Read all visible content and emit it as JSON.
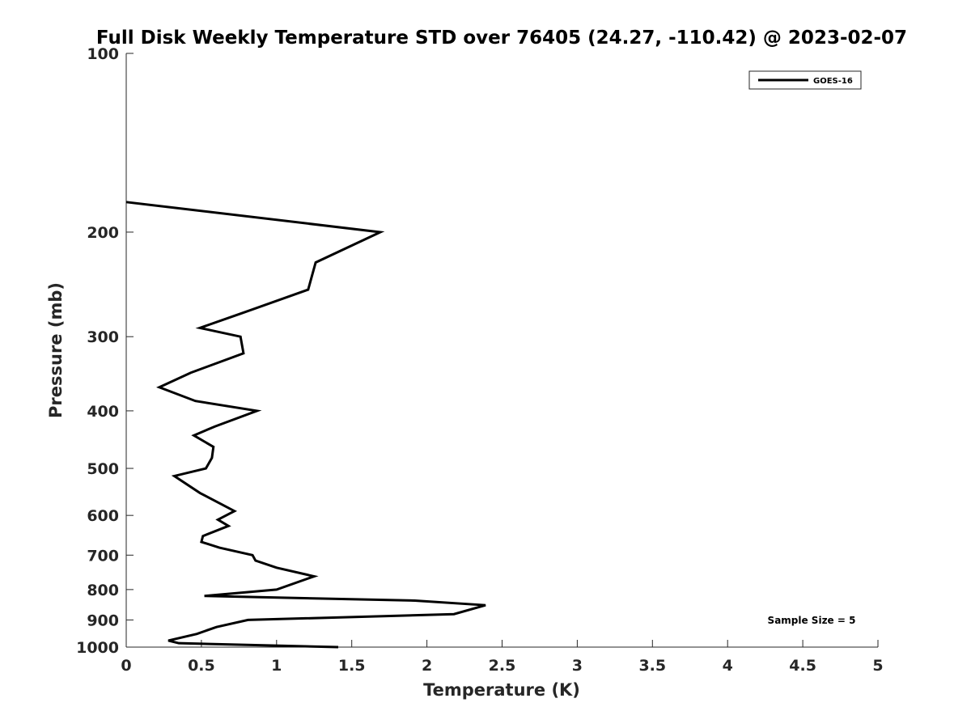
{
  "chart_data": {
    "type": "line",
    "title": "Full Disk Weekly Temperature STD over 76405 (24.27, -110.42) @ 2023-02-07",
    "xlabel": "Temperature (K)",
    "ylabel": "Pressure (mb)",
    "xlim": [
      0,
      5
    ],
    "ylim": [
      100,
      1000
    ],
    "y_scale": "log",
    "y_reversed": true,
    "x_ticks": [
      0,
      0.5,
      1,
      1.5,
      2,
      2.5,
      3,
      3.5,
      4,
      4.5,
      5
    ],
    "x_tick_labels": [
      "0",
      "0.5",
      "1",
      "1.5",
      "2",
      "2.5",
      "3",
      "3.5",
      "4",
      "4.5",
      "5"
    ],
    "y_ticks": [
      100,
      200,
      300,
      400,
      500,
      600,
      700,
      800,
      900,
      1000
    ],
    "y_tick_labels": [
      "100",
      "200",
      "300",
      "400",
      "500",
      "600",
      "700",
      "800",
      "900",
      "1000"
    ],
    "grid": false,
    "legend_position": "top-right",
    "annotation": "Sample Size = 5",
    "series": [
      {
        "name": "GOES-16",
        "color": "#000000",
        "points": [
          [
            0.0,
            178
          ],
          [
            1.69,
            200
          ],
          [
            1.26,
            225
          ],
          [
            1.21,
            250
          ],
          [
            0.75,
            275
          ],
          [
            0.49,
            290
          ],
          [
            0.76,
            300
          ],
          [
            0.78,
            320
          ],
          [
            0.43,
            345
          ],
          [
            0.22,
            365
          ],
          [
            0.46,
            385
          ],
          [
            0.87,
            400
          ],
          [
            0.59,
            425
          ],
          [
            0.45,
            440
          ],
          [
            0.58,
            460
          ],
          [
            0.57,
            480
          ],
          [
            0.53,
            500
          ],
          [
            0.32,
            515
          ],
          [
            0.49,
            550
          ],
          [
            0.72,
            590
          ],
          [
            0.61,
            610
          ],
          [
            0.68,
            625
          ],
          [
            0.51,
            650
          ],
          [
            0.5,
            665
          ],
          [
            0.62,
            680
          ],
          [
            0.84,
            700
          ],
          [
            0.86,
            715
          ],
          [
            1.0,
            735
          ],
          [
            1.25,
            760
          ],
          [
            1.0,
            800
          ],
          [
            0.52,
            820
          ],
          [
            1.92,
            835
          ],
          [
            2.39,
            850
          ],
          [
            2.18,
            880
          ],
          [
            0.81,
            900
          ],
          [
            0.6,
            925
          ],
          [
            0.47,
            950
          ],
          [
            0.28,
            975
          ],
          [
            0.35,
            985
          ],
          [
            1.41,
            1000
          ]
        ]
      }
    ]
  }
}
